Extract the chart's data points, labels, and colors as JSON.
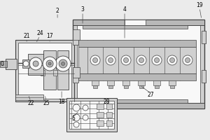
{
  "bg_color": "#ebebeb",
  "line_color": "#404040",
  "fill_light": "#d0d0d0",
  "fill_mid": "#b8b8b8",
  "fill_dark": "#909090",
  "white": "#f8f8f8",
  "gray_bg": "#c8c8c8"
}
